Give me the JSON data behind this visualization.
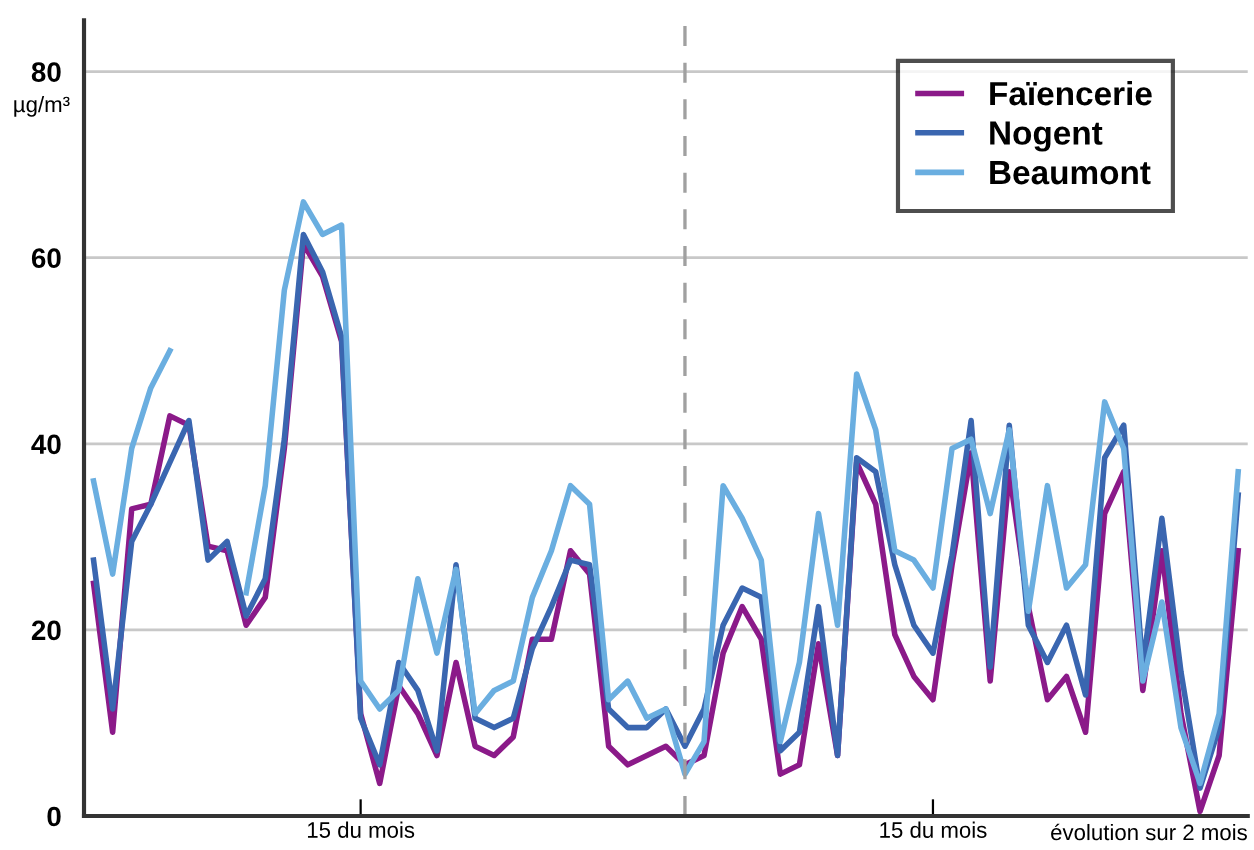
{
  "chart_data": {
    "type": "line",
    "ylabel": "µg/m³",
    "categories": [
      null,
      null,
      null,
      null,
      null,
      null,
      null,
      null,
      null,
      null,
      null,
      null,
      null,
      null,
      "15 du mois",
      null,
      null,
      null,
      null,
      null,
      null,
      null,
      null,
      null,
      null,
      null,
      null,
      null,
      null,
      null,
      null,
      null,
      null,
      null,
      null,
      null,
      null,
      null,
      null,
      null,
      null,
      null,
      null,
      null,
      "15 du mois",
      null,
      null,
      null,
      null,
      null,
      null,
      null,
      null,
      null,
      null,
      null,
      null,
      null,
      null,
      null,
      null
    ],
    "series": [
      {
        "name": "Faïencerie",
        "color": "#8b1a89",
        "values": [
          25,
          9,
          33,
          33.5,
          43,
          42,
          29,
          28.5,
          20.5,
          23.5,
          39.5,
          61.5,
          58,
          51,
          11,
          3.5,
          14,
          11,
          6.5,
          16.5,
          7.5,
          6.5,
          8.5,
          19,
          19,
          28.5,
          26,
          7.5,
          5.5,
          6.5,
          7.5,
          5.5,
          6.5,
          17.5,
          22.5,
          19,
          4.5,
          5.5,
          18.5,
          6.5,
          38,
          33.5,
          19.5,
          15,
          12.5,
          27,
          39,
          14.5,
          37,
          22.5,
          12.5,
          15,
          9,
          32.5,
          37,
          13.5,
          28.5,
          11,
          0.5,
          6.5,
          28.5
        ]
      },
      {
        "name": "Nogent",
        "color": "#3a66b0",
        "values": [
          27.5,
          11.5,
          29.5,
          33.5,
          38,
          42.5,
          27.5,
          29.5,
          21.5,
          25.5,
          40.5,
          62.5,
          58.5,
          51.5,
          10.5,
          5.5,
          16.5,
          13.5,
          7,
          27,
          10.5,
          9.5,
          10.5,
          18,
          22.5,
          27.5,
          27,
          11.5,
          9.5,
          9.5,
          11.5,
          7.5,
          11.5,
          20.5,
          24.5,
          23.5,
          7,
          9,
          22.5,
          6.5,
          38.5,
          37,
          27,
          20.5,
          17.5,
          28,
          42.5,
          16,
          42,
          20.5,
          16.5,
          20.5,
          13,
          38.5,
          42,
          16,
          32,
          15.5,
          3,
          9.5,
          34.5
        ]
      },
      {
        "name": "Beaumont",
        "color": "#6aaee0",
        "values": [
          36,
          26,
          39.5,
          46,
          50,
          null,
          null,
          null,
          24,
          35.5,
          56.5,
          66,
          62.5,
          63.5,
          14.5,
          11.5,
          13.5,
          25.5,
          17.5,
          26.5,
          11,
          13.5,
          14.5,
          23.5,
          28.5,
          35.5,
          33.5,
          12.5,
          14.5,
          10.5,
          11.5,
          4.5,
          8,
          35.5,
          32,
          27.5,
          8,
          16.5,
          32.5,
          20.5,
          47.5,
          41.5,
          28.5,
          27.5,
          24.5,
          39.5,
          40.5,
          32.5,
          41.5,
          22,
          35.5,
          24.5,
          27,
          44.5,
          39.5,
          14.5,
          23,
          9.5,
          3.5,
          11,
          37
        ]
      }
    ],
    "ylim": [
      0,
      85.5
    ],
    "yticks": [
      0,
      20,
      40,
      60,
      80
    ],
    "annotations": [
      "évolution sur 2 mois"
    ],
    "grid": "y",
    "legend": "top right",
    "marker": "none",
    "line_style": "solid"
  }
}
